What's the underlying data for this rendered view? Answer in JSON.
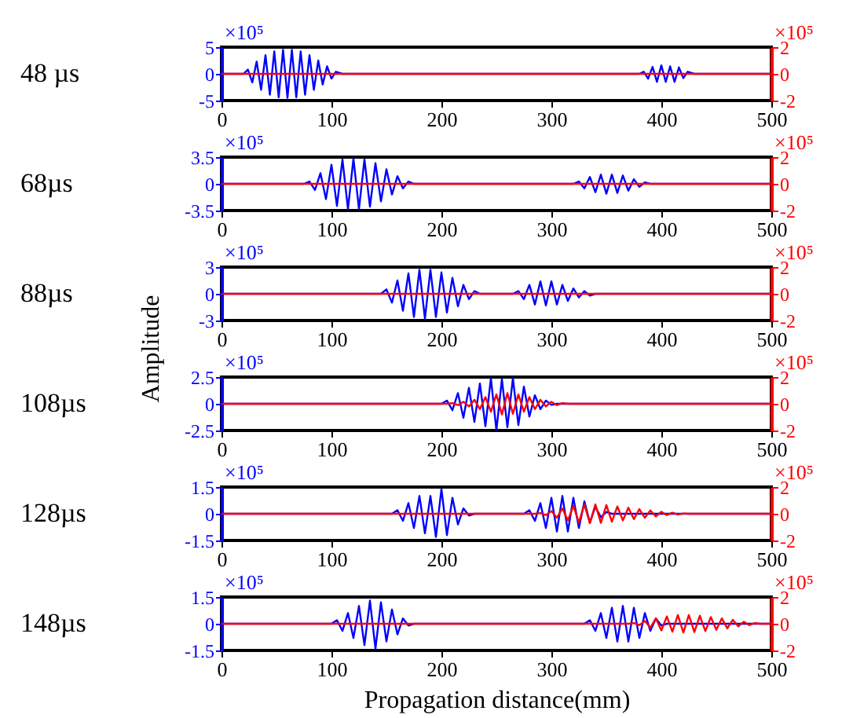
{
  "chart_data": [
    {
      "type": "line",
      "annotations": [
        "48 µs",
        "×10⁵",
        "×10⁵"
      ],
      "xlim": [
        0,
        500
      ],
      "xticks": [
        0,
        100,
        200,
        300,
        400,
        500
      ],
      "ylim": [
        -5,
        5
      ],
      "yticks": [
        -5,
        0,
        5
      ],
      "y2lim": [
        -2,
        2
      ],
      "y2ticks": [
        -2,
        0,
        2
      ],
      "series": [
        {
          "color": "#0000ff",
          "x": [
            0,
            20,
            24,
            28,
            32,
            36,
            40,
            44,
            48,
            52,
            56,
            60,
            64,
            68,
            72,
            76,
            80,
            84,
            88,
            92,
            96,
            100,
            104,
            110,
            380,
            384,
            388,
            392,
            396,
            400,
            404,
            408,
            412,
            416,
            420,
            424,
            430,
            500
          ],
          "values": [
            0,
            0,
            0.8,
            -1.6,
            2.3,
            -3,
            3.5,
            -3.9,
            4.2,
            -4.4,
            4.5,
            -4.5,
            4.5,
            -4.4,
            4.2,
            -3.9,
            3.5,
            -3,
            2.5,
            -2,
            1.4,
            -0.9,
            0.4,
            0,
            0,
            0.4,
            -0.9,
            1.3,
            -1.5,
            1.6,
            -1.5,
            1.4,
            -1.5,
            1.2,
            -0.8,
            0.4,
            0,
            0
          ]
        },
        {
          "color": "#ff0000",
          "axis": "y2",
          "x": [
            0,
            500
          ],
          "values": [
            0,
            0
          ]
        }
      ]
    },
    {
      "type": "line",
      "annotations": [
        "68µs",
        "×10⁵",
        "×10⁵"
      ],
      "xlim": [
        0,
        500
      ],
      "xticks": [
        0,
        100,
        200,
        300,
        400,
        500
      ],
      "ylim": [
        -3.5,
        3.5
      ],
      "yticks": [
        -3.5,
        0,
        3.5
      ],
      "y2lim": [
        -2,
        2
      ],
      "y2ticks": [
        -2,
        0,
        2
      ],
      "series": [
        {
          "color": "#0000ff",
          "x": [
            0,
            75,
            80,
            85,
            90,
            95,
            100,
            105,
            110,
            115,
            120,
            125,
            130,
            135,
            140,
            145,
            150,
            155,
            160,
            165,
            170,
            175,
            320,
            325,
            330,
            335,
            340,
            345,
            350,
            355,
            360,
            365,
            370,
            375,
            380,
            385,
            390,
            500
          ],
          "values": [
            0,
            0,
            0.3,
            -0.8,
            1.4,
            -2,
            2.5,
            -2.9,
            3.2,
            -3.3,
            3.3,
            -3.3,
            3.2,
            -3,
            2.7,
            -2.3,
            1.9,
            -1.4,
            1,
            -0.6,
            0.3,
            0,
            0,
            0.3,
            -0.6,
            0.9,
            -1.1,
            1.2,
            -1.3,
            1.2,
            -1.2,
            1.1,
            -0.9,
            0.6,
            -0.4,
            0.2,
            0,
            0
          ]
        },
        {
          "color": "#ff0000",
          "axis": "y2",
          "x": [
            0,
            500
          ],
          "values": [
            0,
            0
          ]
        }
      ]
    },
    {
      "type": "line",
      "annotations": [
        "88µs",
        "×10⁵",
        "×10⁵"
      ],
      "ylabel": "Amplitude",
      "xlim": [
        0,
        500
      ],
      "xticks": [
        0,
        100,
        200,
        300,
        400,
        500
      ],
      "ylim": [
        -3,
        3
      ],
      "yticks": [
        -3,
        0,
        3
      ],
      "y2lim": [
        -2,
        2
      ],
      "y2ticks": [
        -2,
        0,
        2
      ],
      "series": [
        {
          "color": "#0000ff",
          "x": [
            0,
            145,
            150,
            155,
            160,
            165,
            170,
            175,
            180,
            185,
            190,
            195,
            200,
            205,
            210,
            215,
            220,
            225,
            230,
            235,
            265,
            270,
            275,
            280,
            285,
            290,
            295,
            300,
            305,
            310,
            315,
            320,
            325,
            330,
            335,
            340,
            500
          ],
          "values": [
            0,
            0,
            0.5,
            -1,
            1.5,
            -1.9,
            2.3,
            -2.6,
            2.7,
            -2.8,
            2.7,
            -2.6,
            2.4,
            -2.1,
            1.8,
            -1.4,
            1,
            -0.6,
            0.3,
            0,
            0,
            0.3,
            -0.6,
            1,
            -1.2,
            1.4,
            -1.3,
            1.4,
            -1.2,
            1,
            -0.8,
            0.6,
            -0.4,
            0.3,
            -0.2,
            0,
            0
          ]
        },
        {
          "color": "#ff0000",
          "axis": "y2",
          "x": [
            0,
            500
          ],
          "values": [
            0,
            0
          ]
        }
      ]
    },
    {
      "type": "line",
      "annotations": [
        "108µs",
        "×10⁵",
        "×10⁵"
      ],
      "xlim": [
        0,
        500
      ],
      "xticks": [
        0,
        100,
        200,
        300,
        400,
        500
      ],
      "ylim": [
        -2.5,
        2.5
      ],
      "yticks": [
        -2.5,
        0,
        2.5
      ],
      "y2lim": [
        -2,
        2
      ],
      "y2ticks": [
        -2,
        0,
        2
      ],
      "series": [
        {
          "color": "#0000ff",
          "x": [
            0,
            200,
            205,
            210,
            215,
            220,
            225,
            230,
            235,
            240,
            245,
            250,
            255,
            260,
            265,
            270,
            275,
            280,
            285,
            290,
            295,
            300,
            305,
            500
          ],
          "values": [
            0,
            0,
            0.3,
            -0.6,
            1,
            -1.3,
            1.5,
            -1.7,
            1.9,
            -2.1,
            2.4,
            -2.5,
            2.3,
            -2.2,
            2.4,
            -2,
            1.6,
            -1.2,
            0.8,
            -0.5,
            0.3,
            -0.1,
            0,
            0
          ]
        },
        {
          "color": "#ff0000",
          "axis": "y2",
          "x": [
            0,
            205,
            210,
            215,
            220,
            225,
            230,
            235,
            240,
            245,
            250,
            255,
            260,
            265,
            270,
            275,
            280,
            285,
            290,
            295,
            300,
            305,
            310,
            315,
            500
          ],
          "values": [
            0,
            0,
            0.05,
            -0.1,
            0.15,
            -0.2,
            0.3,
            -0.4,
            0.5,
            -0.6,
            0.7,
            -0.8,
            0.8,
            -0.75,
            0.7,
            -0.6,
            0.5,
            -0.4,
            0.3,
            -0.2,
            0.15,
            -0.1,
            0.05,
            0,
            0
          ]
        }
      ]
    },
    {
      "type": "line",
      "annotations": [
        "128µs",
        "×10⁵",
        "×10⁵"
      ],
      "xlim": [
        0,
        500
      ],
      "xticks": [
        0,
        100,
        200,
        300,
        400,
        500
      ],
      "ylim": [
        -1.5,
        1.5
      ],
      "yticks": [
        -1.5,
        0,
        1.5
      ],
      "y2lim": [
        -2,
        2
      ],
      "y2ticks": [
        -2,
        0,
        2
      ],
      "series": [
        {
          "color": "#0000ff",
          "x": [
            0,
            155,
            160,
            165,
            170,
            175,
            180,
            185,
            190,
            195,
            200,
            205,
            210,
            215,
            220,
            225,
            230,
            275,
            280,
            285,
            290,
            295,
            300,
            305,
            310,
            315,
            320,
            325,
            330,
            335,
            340,
            345,
            350,
            355,
            500
          ],
          "values": [
            0,
            0,
            0.2,
            -0.4,
            0.6,
            -0.8,
            1,
            -1.1,
            1,
            -1.3,
            1.4,
            -1.2,
            0.9,
            -0.6,
            0.3,
            -0.1,
            0,
            0,
            0.2,
            -0.4,
            0.6,
            -0.8,
            0.9,
            -1,
            1,
            -1,
            0.9,
            -0.8,
            0.7,
            -0.5,
            0.4,
            -0.2,
            0.1,
            0,
            0
          ]
        },
        {
          "color": "#ff0000",
          "axis": "y2",
          "x": [
            0,
            285,
            290,
            295,
            300,
            305,
            310,
            315,
            320,
            325,
            330,
            335,
            340,
            345,
            350,
            355,
            360,
            365,
            370,
            375,
            380,
            385,
            390,
            395,
            400,
            405,
            410,
            415,
            420,
            425,
            500
          ],
          "values": [
            0,
            0,
            0.05,
            -0.1,
            0.2,
            -0.3,
            0.4,
            -0.5,
            0.6,
            -0.65,
            0.7,
            -0.7,
            0.7,
            -0.68,
            0.65,
            -0.6,
            0.55,
            -0.5,
            0.45,
            -0.4,
            0.35,
            -0.3,
            0.25,
            -0.2,
            0.15,
            -0.1,
            0.08,
            -0.05,
            0.02,
            0,
            0
          ]
        }
      ]
    },
    {
      "type": "line",
      "annotations": [
        "148µs",
        "×10⁵",
        "×10⁵"
      ],
      "xlabel": "Propagation distance(mm)",
      "xlim": [
        0,
        500
      ],
      "xticks": [
        0,
        100,
        200,
        300,
        400,
        500
      ],
      "ylim": [
        -1.5,
        1.5
      ],
      "yticks": [
        -1.5,
        0,
        1.5
      ],
      "y2lim": [
        -2,
        2
      ],
      "y2ticks": [
        -2,
        0,
        2
      ],
      "series": [
        {
          "color": "#0000ff",
          "x": [
            0,
            100,
            105,
            110,
            115,
            120,
            125,
            130,
            135,
            140,
            145,
            150,
            155,
            160,
            165,
            170,
            175,
            330,
            335,
            340,
            345,
            350,
            355,
            360,
            365,
            370,
            375,
            380,
            385,
            390,
            395,
            400,
            405,
            500
          ],
          "values": [
            0,
            0,
            0.2,
            -0.4,
            0.6,
            -0.8,
            1,
            -1.2,
            1.3,
            -1.4,
            1.2,
            -1,
            0.8,
            -0.6,
            0.3,
            -0.1,
            0,
            0,
            0.2,
            -0.4,
            0.6,
            -0.8,
            0.9,
            -1,
            1,
            -1,
            0.9,
            -0.8,
            0.6,
            -0.4,
            0.3,
            -0.1,
            0,
            0
          ]
        },
        {
          "color": "#ff0000",
          "axis": "y2",
          "x": [
            0,
            370,
            375,
            380,
            385,
            390,
            395,
            400,
            405,
            410,
            415,
            420,
            425,
            430,
            435,
            440,
            445,
            450,
            455,
            460,
            465,
            470,
            475,
            480,
            485,
            490,
            500
          ],
          "values": [
            0,
            0,
            0.05,
            -0.1,
            0.2,
            -0.3,
            0.4,
            -0.5,
            0.55,
            -0.6,
            0.65,
            -0.65,
            0.65,
            -0.62,
            0.6,
            -0.55,
            0.5,
            -0.45,
            0.4,
            -0.35,
            0.3,
            -0.2,
            0.15,
            -0.1,
            0.05,
            0,
            0
          ]
        }
      ]
    }
  ]
}
